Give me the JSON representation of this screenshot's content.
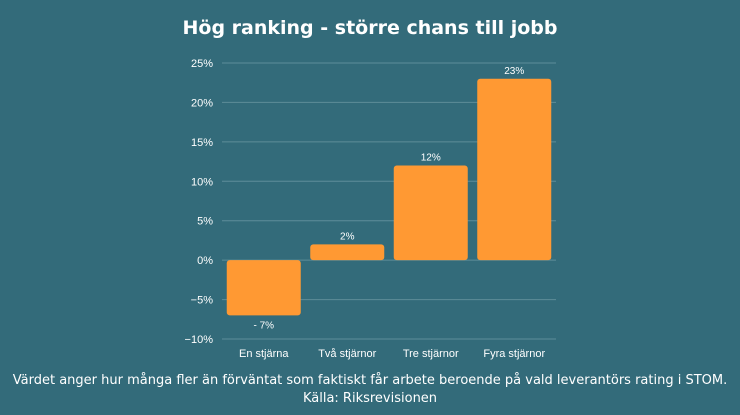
{
  "chart_data": {
    "type": "bar",
    "title": "Hög ranking - större chans till jobb",
    "categories": [
      "En stjärna",
      "Två stjärnor",
      "Tre stjärnor",
      "Fyra stjärnor"
    ],
    "values": [
      -7,
      2,
      12,
      23
    ],
    "value_labels": [
      "- 7%",
      "2%",
      "12%",
      "23%"
    ],
    "ylim": [
      -10,
      25
    ],
    "yticks": [
      25,
      20,
      15,
      10,
      5,
      0,
      -5,
      -10
    ],
    "ytick_labels": [
      "25%",
      "20%",
      "15%",
      "10%",
      "5%",
      "0%",
      "−5%",
      "−10%"
    ],
    "grid": true,
    "bar_color": "#ff9933"
  },
  "footer": {
    "note": "Värdet anger hur många fler än förväntat som faktiskt får arbete beroende på vald leverantörs rating i STOM.",
    "source": "Källa: Riksrevisionen"
  },
  "colors": {
    "background": "#336b7a",
    "grid": "#5e8d99",
    "text": "#ffffff"
  }
}
